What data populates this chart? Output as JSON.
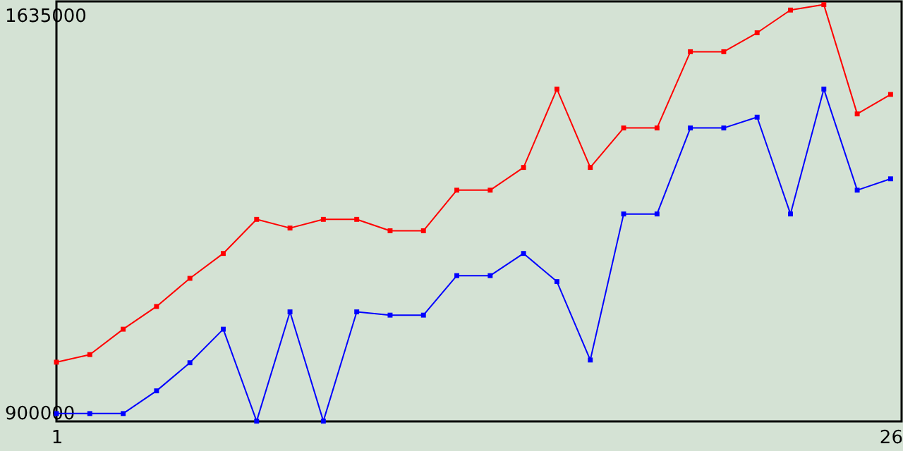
{
  "chart_data": {
    "type": "line",
    "marker": "square",
    "x": [
      1,
      2,
      3,
      4,
      5,
      6,
      7,
      8,
      9,
      10,
      11,
      12,
      13,
      14,
      15,
      16,
      17,
      18,
      19,
      20,
      21,
      22,
      23,
      24,
      25,
      26
    ],
    "xlim": [
      1,
      26.33
    ],
    "xticks": [
      1,
      26
    ],
    "ylim": [
      884500,
      1661000
    ],
    "yticks": [
      900000,
      1635000
    ],
    "series": [
      {
        "color": "#ff0000",
        "values": [
          994000,
          1008000,
          1055000,
          1097000,
          1149000,
          1195000,
          1258000,
          1242000,
          1258000,
          1258000,
          1237000,
          1237000,
          1312000,
          1312000,
          1354000,
          1499000,
          1354000,
          1427000,
          1427000,
          1568000,
          1568000,
          1603000,
          1645000,
          1655000,
          1453000,
          1489000
        ]
      },
      {
        "color": "#0000ff",
        "values": [
          899000,
          899000,
          899000,
          941000,
          993000,
          1055000,
          885000,
          1087000,
          885000,
          1087000,
          1081000,
          1081000,
          1154000,
          1154000,
          1195000,
          1143000,
          998000,
          1268000,
          1268000,
          1427000,
          1427000,
          1447000,
          1268000,
          1499000,
          1312000,
          1333000
        ]
      }
    ]
  }
}
